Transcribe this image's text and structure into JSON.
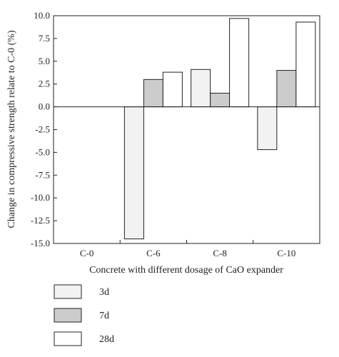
{
  "chart_data": {
    "type": "bar",
    "title": "",
    "xlabel": "Concrete with different dosage of CaO expander",
    "ylabel": "Change in compressive strength relate to C-0 (%)",
    "categories": [
      "C-0",
      "C-6",
      "C-8",
      "C-10"
    ],
    "ylim": [
      -15.0,
      10.0
    ],
    "yticks": [
      "10.0",
      "7.5",
      "5.0",
      "2.5",
      "0.0",
      "-2.5",
      "-5.0",
      "-7.5",
      "-10.0",
      "-12.5",
      "-15.0"
    ],
    "ytick_values": [
      10.0,
      7.5,
      5.0,
      2.5,
      0.0,
      -2.5,
      -5.0,
      -7.5,
      -10.0,
      -12.5,
      -15.0
    ],
    "grid": false,
    "legend_position": "bottom-left, below plot",
    "series": [
      {
        "name": "3d",
        "color": "#f2f2f2",
        "values": [
          0,
          -14.5,
          4.1,
          -4.7
        ]
      },
      {
        "name": "7d",
        "color": "#cccccc",
        "values": [
          0,
          3.0,
          1.5,
          4.0
        ]
      },
      {
        "name": "28d",
        "color": "#ffffff",
        "values": [
          0,
          3.8,
          9.7,
          9.3
        ]
      }
    ]
  }
}
